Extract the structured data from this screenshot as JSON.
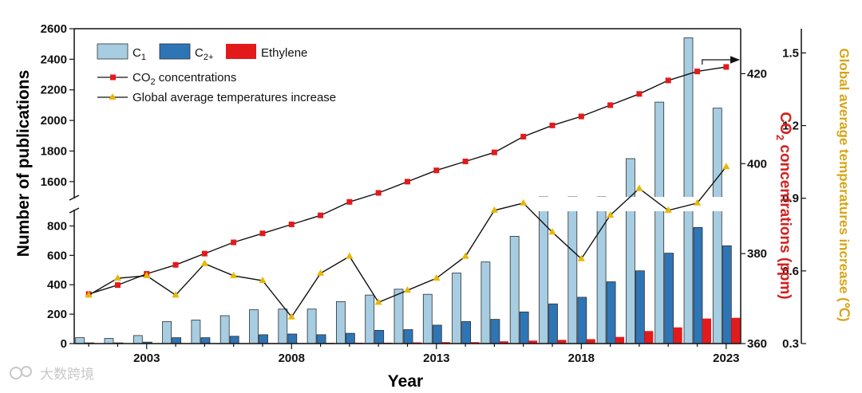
{
  "chart_data": {
    "type": "bar",
    "x_label": "Year",
    "categories": [
      2001,
      2002,
      2003,
      2004,
      2005,
      2006,
      2007,
      2008,
      2009,
      2010,
      2011,
      2012,
      2013,
      2014,
      2015,
      2016,
      2017,
      2018,
      2019,
      2020,
      2021,
      2022,
      2023
    ],
    "x_tick_labels": [
      "2003",
      "2008",
      "2013",
      "2018",
      "2023"
    ],
    "y_left": {
      "label": "Number of publications",
      "lower_range": [
        0,
        900
      ],
      "upper_range": [
        1500,
        2600
      ],
      "ticks": [
        "0",
        "200",
        "400",
        "600",
        "800",
        "1600",
        "1800",
        "2000",
        "2200",
        "2400",
        "2600"
      ]
    },
    "y_right1": {
      "label_prefix": "CO",
      "label_sub": "2",
      "label_suffix": " concentrations (ppm)",
      "range": [
        360,
        430
      ],
      "ticks": [
        "360",
        "380",
        "400",
        "420"
      ]
    },
    "y_right2": {
      "label": "Global average temperatures increase (℃)",
      "range": [
        0.3,
        1.6
      ],
      "ticks": [
        "0.3",
        "0.6",
        "0.9",
        "1.2",
        "1.5"
      ]
    },
    "bar_series": [
      {
        "name": "C1",
        "legend_main": "C",
        "legend_sub": "1",
        "color": "#a6cde2",
        "values": [
          40,
          35,
          55,
          150,
          160,
          190,
          230,
          235,
          235,
          285,
          330,
          370,
          335,
          480,
          555,
          730,
          1500,
          1500,
          1500,
          1750,
          2120,
          2540,
          2080
        ]
      },
      {
        "name": "C2+",
        "legend_main": "C",
        "legend_sub": "2+",
        "color": "#2e75b6",
        "values": [
          5,
          5,
          10,
          40,
          40,
          50,
          60,
          65,
          60,
          70,
          90,
          95,
          125,
          150,
          165,
          215,
          270,
          315,
          420,
          495,
          615,
          790,
          665
        ]
      },
      {
        "name": "Ethylene",
        "legend_main": "Ethylene",
        "legend_sub": "",
        "color": "#e31a1c",
        "values": [
          2,
          2,
          2,
          3,
          3,
          3,
          4,
          4,
          5,
          6,
          6,
          8,
          10,
          10,
          15,
          20,
          25,
          30,
          45,
          85,
          110,
          170,
          175
        ]
      }
    ],
    "line_series": [
      {
        "name": "CO2 concentrations",
        "legend_prefix": "CO",
        "legend_sub": "2",
        "legend_suffix": " concentrations",
        "axis": "y_right1",
        "color": "#e31a1c",
        "values": [
          371,
          373,
          375.5,
          377.5,
          380,
          382.5,
          384.5,
          386.5,
          388.5,
          391.5,
          393.5,
          396,
          398.5,
          400.5,
          402.5,
          406,
          408.5,
          410.5,
          413,
          415.5,
          418.5,
          420.5,
          421.5
        ]
      },
      {
        "name": "Global average temperatures increase",
        "legend_prefix": "Global average temperatures increase",
        "legend_sub": "",
        "legend_suffix": "",
        "axis": "y_right2",
        "color": "#e6b800",
        "values": [
          0.5,
          0.57,
          0.58,
          0.5,
          0.63,
          0.58,
          0.56,
          0.41,
          0.59,
          0.66,
          0.47,
          0.52,
          0.57,
          0.66,
          0.85,
          0.88,
          0.76,
          0.65,
          0.83,
          0.94,
          0.85,
          0.88,
          1.03
        ]
      }
    ],
    "legend_position": "top-left"
  },
  "watermark": "大数跨境"
}
